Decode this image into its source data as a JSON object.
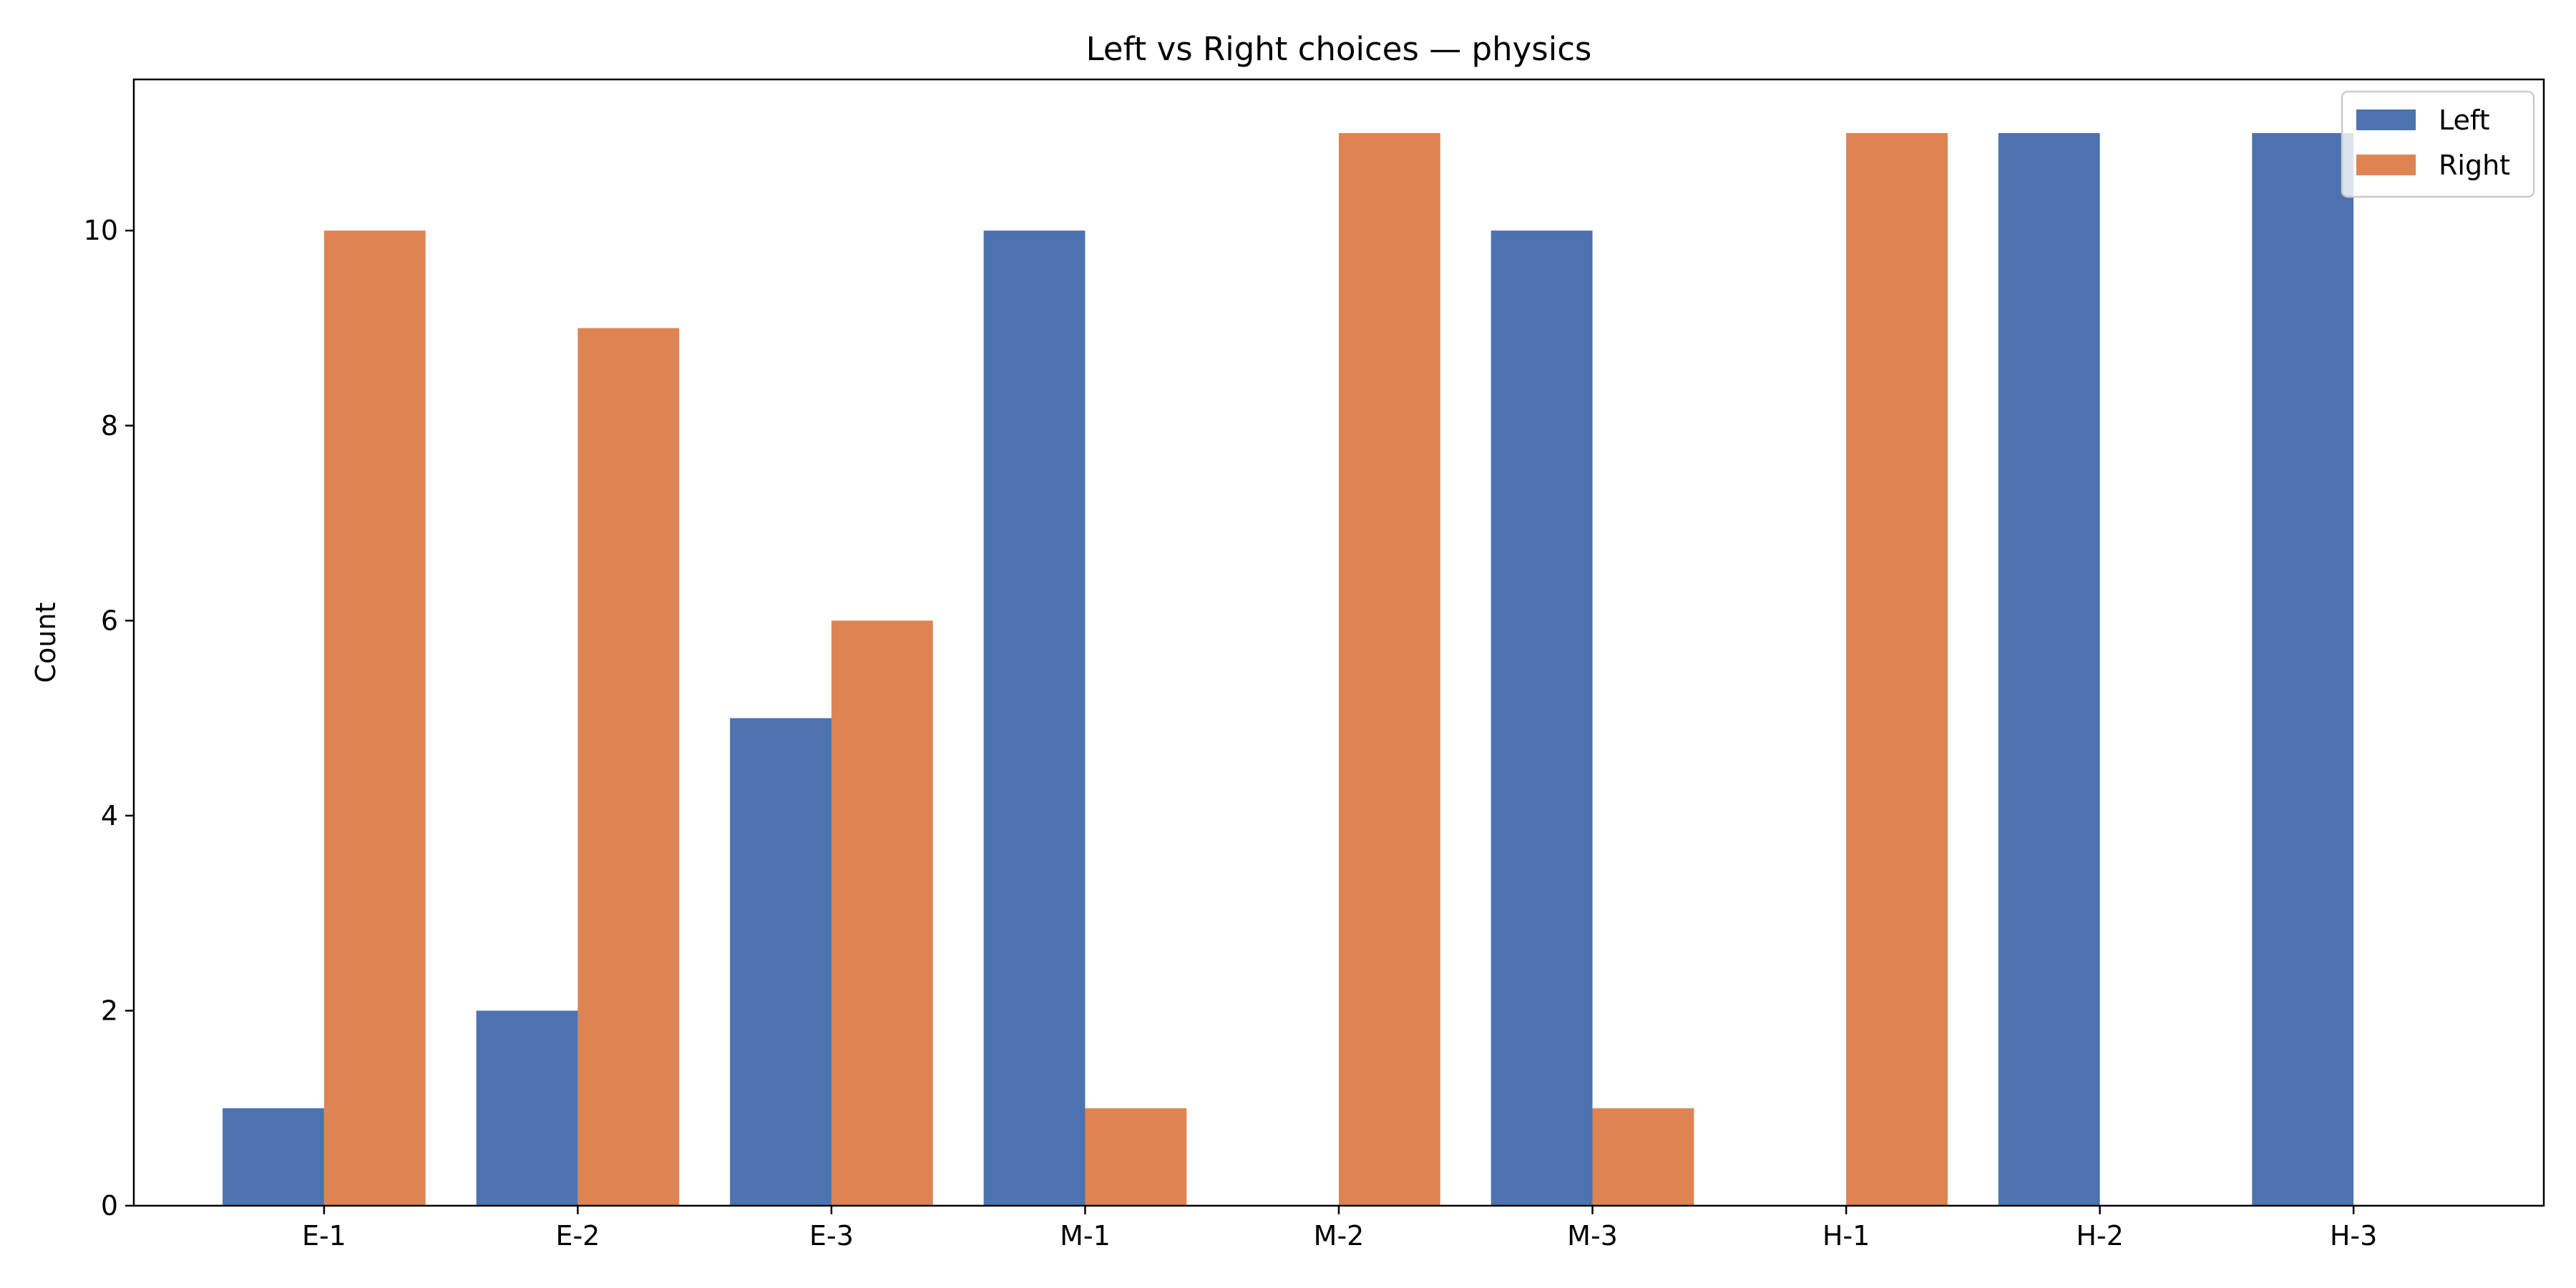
{
  "chart_data": {
    "type": "bar",
    "title": "Left vs Right choices — physics",
    "xlabel": "",
    "ylabel": "Count",
    "categories": [
      "E-1",
      "E-2",
      "E-3",
      "M-1",
      "M-2",
      "M-3",
      "H-1",
      "H-2",
      "H-3"
    ],
    "series": [
      {
        "name": "Left",
        "color": "#4c72b0",
        "values": [
          1,
          2,
          5,
          10,
          0,
          10,
          0,
          11,
          11
        ]
      },
      {
        "name": "Right",
        "color": "#dd8452",
        "values": [
          10,
          9,
          6,
          1,
          11,
          1,
          11,
          0,
          0
        ]
      }
    ],
    "ylim": [
      0,
      11.55
    ],
    "yticks": [
      0,
      2,
      4,
      6,
      8,
      10
    ],
    "grid": false,
    "legend_position": "top-right"
  }
}
